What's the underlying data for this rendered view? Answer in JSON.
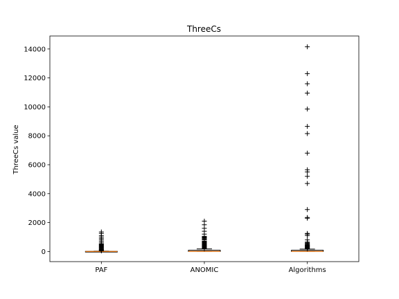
{
  "chart_data": {
    "type": "boxplot",
    "title": "ThreeCs",
    "xlabel": "",
    "ylabel": "ThreeCs value",
    "ylim": [
      -700,
      14900
    ],
    "yticks": [
      0,
      2000,
      4000,
      6000,
      8000,
      10000,
      12000,
      14000
    ],
    "categories": [
      "PAF",
      "ANOMIC",
      "Algorithms"
    ],
    "boxes": [
      {
        "name": "PAF",
        "q1": 0,
        "median": 2,
        "q3": 10,
        "whisker_low": 0,
        "whisker_high": 25,
        "outliers": [
          40,
          70,
          100,
          130,
          160,
          200,
          240,
          280,
          320,
          360,
          400,
          440,
          480,
          520,
          600,
          700,
          800,
          900,
          1000,
          1100,
          1250,
          1350
        ]
      },
      {
        "name": "ANOMIC",
        "q1": 0,
        "median": 10,
        "q3": 90,
        "whisker_low": 0,
        "whisker_high": 180,
        "outliers": [
          200,
          230,
          260,
          290,
          320,
          350,
          380,
          410,
          440,
          470,
          500,
          530,
          560,
          600,
          640,
          680,
          720,
          800,
          850,
          900,
          950,
          1000,
          1050,
          1200,
          1400,
          1600,
          1850,
          2100
        ]
      },
      {
        "name": "Algorithms",
        "q1": 0,
        "median": 10,
        "q3": 90,
        "whisker_low": 0,
        "whisker_high": 170,
        "outliers": [
          190,
          220,
          250,
          280,
          310,
          340,
          370,
          400,
          430,
          460,
          500,
          550,
          600,
          650,
          800,
          1100,
          1200,
          1250,
          2300,
          2350,
          2900,
          4700,
          5200,
          5500,
          5650,
          6800,
          8150,
          8650,
          9850,
          10950,
          11600,
          12300,
          14150
        ]
      }
    ],
    "colors": {
      "box": "#000000",
      "median": "#ff7f0e",
      "flier": "#000000"
    }
  }
}
